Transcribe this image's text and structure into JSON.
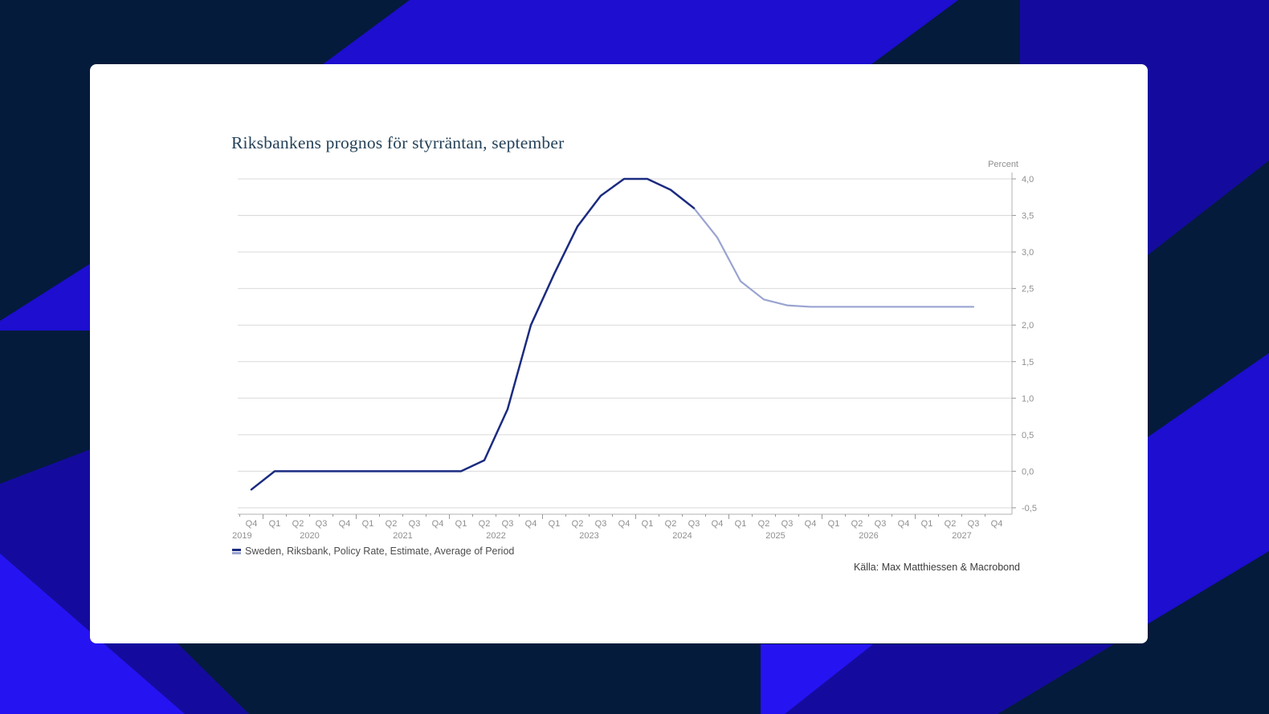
{
  "background": {
    "base_navy": "#041b3c",
    "blue_bright": "#2613f2",
    "blue_mid": "#1d0ed0",
    "blue_deep": "#140b9e"
  },
  "card": {
    "title": "Riksbankens prognos för styrräntan, september",
    "legend_label": "Sweden, Riksbank, Policy Rate, Estimate, Average of Period",
    "source": "Källa: Max Matthiessen & Macrobond"
  },
  "chart_data": {
    "type": "line",
    "title": "Riksbankens prognos för styrräntan, september",
    "y_axis": {
      "label": "Percent",
      "min": -0.5,
      "max": 4.0,
      "step": 0.5,
      "tick_labels": [
        "4,0",
        "3,5",
        "3,0",
        "2,5",
        "2,0",
        "1,5",
        "1,0",
        "0,5",
        "0,0",
        "-0,5"
      ]
    },
    "x_axis": {
      "quarter_labels": [
        "Q4",
        "Q1",
        "Q2",
        "Q3",
        "Q4",
        "Q1",
        "Q2",
        "Q3",
        "Q4",
        "Q1",
        "Q2",
        "Q3",
        "Q4",
        "Q1",
        "Q2",
        "Q3",
        "Q4",
        "Q1",
        "Q2",
        "Q3",
        "Q4",
        "Q1",
        "Q2",
        "Q3",
        "Q4",
        "Q1",
        "Q2",
        "Q3",
        "Q4",
        "Q1",
        "Q2",
        "Q3",
        "Q4"
      ],
      "year_labels": [
        {
          "label": "2019",
          "pos": -0.4
        },
        {
          "label": "2020",
          "pos": 2.5
        },
        {
          "label": "2021",
          "pos": 6.5
        },
        {
          "label": "2022",
          "pos": 10.5
        },
        {
          "label": "2023",
          "pos": 14.5
        },
        {
          "label": "2024",
          "pos": 18.5
        },
        {
          "label": "2025",
          "pos": 22.5
        },
        {
          "label": "2026",
          "pos": 26.5
        },
        {
          "label": "2027",
          "pos": 30.5
        }
      ]
    },
    "grid": true,
    "legend_position": "bottom-left",
    "series": [
      {
        "name": "Sweden, Riksbank, Policy Rate, Estimate, Average of Period",
        "historical_color": "#1b2b80",
        "forecast_color": "#99a3d1",
        "forecast_start_index": 19,
        "values": [
          -0.25,
          0,
          0,
          0,
          0,
          0,
          0,
          0,
          0,
          0,
          0.15,
          0.85,
          2.0,
          2.7,
          3.35,
          3.77,
          4.0,
          4.0,
          3.85,
          3.6,
          3.2,
          2.6,
          2.35,
          2.27,
          2.25,
          2.25,
          2.25,
          2.25,
          2.25,
          2.25,
          2.25,
          2.25,
          null
        ]
      }
    ]
  }
}
